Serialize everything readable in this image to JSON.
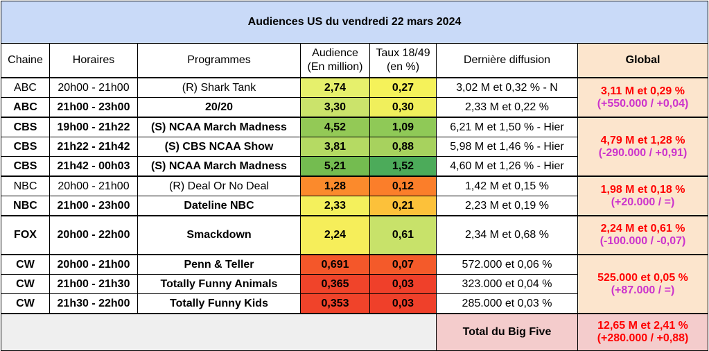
{
  "title": "Audiences US du vendredi 22 mars 2024",
  "headers": {
    "chaine": "Chaine",
    "horaires": "Horaires",
    "programmes": "Programmes",
    "audience_l1": "Audience",
    "audience_l2": "(En million)",
    "taux_l1": "Taux 18/49",
    "taux_l2": "(en %)",
    "derniere": "Dernière diffusion",
    "global": "Global"
  },
  "colors": {
    "title_bg": "#c9daf8",
    "global_bg": "#fce5cd",
    "total_bg": "#f4cccc",
    "red_text": "#ff0000",
    "magenta_text": "#cc33cc"
  },
  "rows": [
    {
      "chaine": "ABC",
      "horaires": "20h00 - 21h00",
      "programme": "(R) Shark Tank",
      "audience": "2,74",
      "taux": "0,27",
      "derniere": "3,02 M et 0,32 % - N",
      "bold": false,
      "aud_bg": "#e6f06c",
      "taux_bg": "#f5f25a"
    },
    {
      "chaine": "ABC",
      "horaires": "21h00 - 23h00",
      "programme": "20/20",
      "audience": "3,30",
      "taux": "0,30",
      "derniere": "2,33 M et 0,22 %",
      "bold": true,
      "aud_bg": "#cbe36b",
      "taux_bg": "#f0ef5c"
    },
    {
      "chaine": "CBS",
      "horaires": "19h00 - 21h22",
      "programme": "(S) NCAA March Madness",
      "audience": "4,52",
      "taux": "1,09",
      "derniere": "6,21 M et 1,50 % - Hier",
      "bold": true,
      "aud_bg": "#93c956",
      "taux_bg": "#8fc957"
    },
    {
      "chaine": "CBS",
      "horaires": "21h22 - 21h42",
      "programme": "(S) CBS NCAA Show",
      "audience": "3,81",
      "taux": "0,88",
      "derniere": "5,98 M et 1,46 % - Hier",
      "bold": true,
      "aud_bg": "#b5da63",
      "taux_bg": "#a7d25e"
    },
    {
      "chaine": "CBS",
      "horaires": "21h42 - 00h03",
      "programme": "(S) NCAA March Madness",
      "audience": "5,21",
      "taux": "1,52",
      "derniere": "4,60 M et 1,26 % - Hier",
      "bold": true,
      "aud_bg": "#74bc50",
      "taux_bg": "#4cab5a"
    },
    {
      "chaine": "NBC",
      "horaires": "20h00 - 21h00",
      "programme": "(R) Deal Or No Deal",
      "audience": "1,28",
      "taux": "0,12",
      "derniere": "1,42 M et 0,15 %",
      "bold": false,
      "aud_bg": "#fb8a2c",
      "taux_bg": "#fb7e2a"
    },
    {
      "chaine": "NBC",
      "horaires": "21h00 - 23h00",
      "programme": "Dateline NBC",
      "audience": "2,33",
      "taux": "0,21",
      "derniere": "2,23 M et 0,19 %",
      "bold": true,
      "aud_bg": "#f4f05c",
      "taux_bg": "#fcc13a"
    },
    {
      "chaine": "FOX",
      "horaires": "20h00 - 22h00",
      "programme": "Smackdown",
      "audience": "2,24",
      "taux": "0,61",
      "derniere": "2,34 M et 0,68 %",
      "bold": true,
      "aud_bg": "#f6ee5a",
      "taux_bg": "#c8e26a"
    },
    {
      "chaine": "CW",
      "horaires": "20h00 - 21h00",
      "programme": "Penn & Teller",
      "audience": "0,691",
      "taux": "0,07",
      "derniere": "572.000 et 0,06 %",
      "bold": true,
      "aud_bg": "#f4572a",
      "taux_bg": "#f45a2a"
    },
    {
      "chaine": "CW",
      "horaires": "21h00 - 21h30",
      "programme": "Totally Funny Animals",
      "audience": "0,365",
      "taux": "0,03",
      "derniere": "323.000 et 0,04 %",
      "bold": true,
      "aud_bg": "#f0442a",
      "taux_bg": "#ef402a"
    },
    {
      "chaine": "CW",
      "horaires": "21h30 - 22h00",
      "programme": "Totally Funny Kids",
      "audience": "0,353",
      "taux": "0,03",
      "derniere": "285.000 et 0,03 %",
      "bold": true,
      "aud_bg": "#f0432a",
      "taux_bg": "#ef402a"
    }
  ],
  "globals": [
    {
      "main": "3,11 M et 0,29 %",
      "delta": "(+550.000 / +0,04)"
    },
    {
      "main": "4,79 M et 1,28 %",
      "delta": "(-290.000 / +0,91)"
    },
    {
      "main": "1,98 M et 0,18 %",
      "delta": "(+20.000 / =)"
    },
    {
      "main": "2,24 M et 0,61 %",
      "delta": "(-100.000 / -0,07)"
    },
    {
      "main": "525.000 et 0,05 %",
      "delta": "(+87.000 / =)"
    }
  ],
  "total": {
    "label": "Total du Big Five",
    "main": "12,65 M et 2,41 %",
    "delta": "(+280.000 / +0,88)"
  }
}
